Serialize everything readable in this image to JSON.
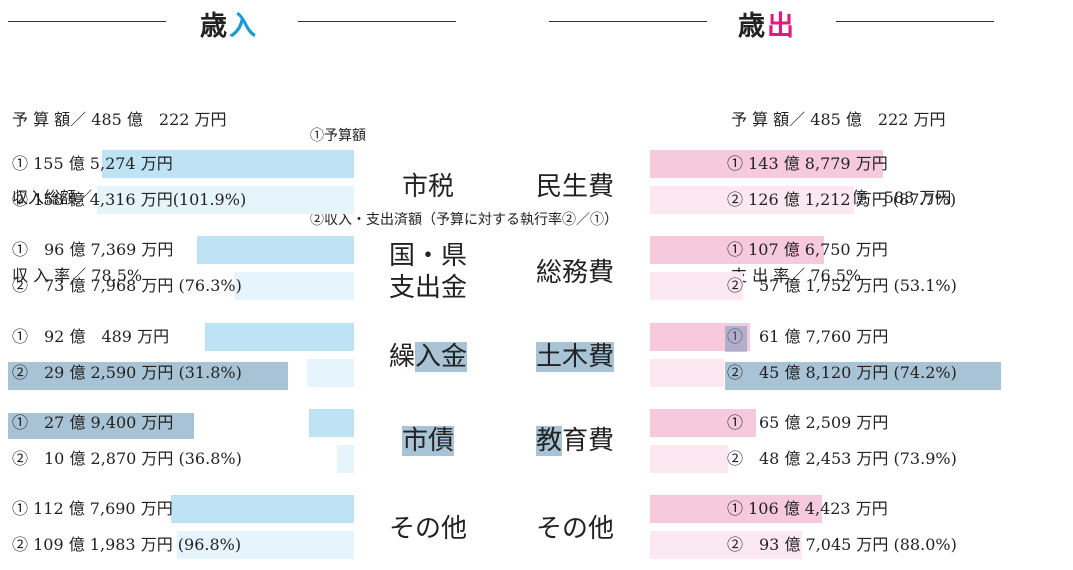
{
  "revenue": {
    "title_a": "歳",
    "title_b": "入",
    "summary": [
      "予 算 額／ 485 億　222 万円",
      "収入総額／ 380 億 9,726 万円",
      "収 入 率／ 78.5%"
    ]
  },
  "expenditure": {
    "title_a": "歳",
    "title_b": "出",
    "summary": [
      "予 算 額／ 485 億　222 万円",
      "支出済額／ 371 億　583 万円",
      "支 出 率／ 76.5%"
    ]
  },
  "legend": [
    "①予算額",
    "②収入・支出済額（予算に対する執行率②／①）"
  ],
  "colors": {
    "revenue_budget": "#bde3f5",
    "revenue_actual": "#e6f4fb",
    "expense_budget": "#f6c9dc",
    "expense_actual": "#fbe8f0",
    "accent_blue": "#1c9ad6",
    "accent_pink": "#e0197d",
    "highlight": "#5e91b2"
  },
  "chart_data": [
    {
      "type": "bar",
      "title": "歳入",
      "categories": [
        "市税",
        "国・県支出金",
        "繰入金",
        "市債",
        "その他"
      ],
      "series": [
        {
          "name": "予算額",
          "values": [
            155.5274,
            96.7369,
            92.0489,
            27.94,
            112.769
          ]
        },
        {
          "name": "収入済額",
          "values": [
            158.4316,
            73.7968,
            29.259,
            10.287,
            109.1983
          ]
        }
      ],
      "labels_budget": [
        "① 155 億 5,274 万円",
        "①　96 億 7,369 万円",
        "①　92 億　489 万円",
        "①　27 億 9,400 万円",
        "① 112 億 7,690 万円"
      ],
      "labels_actual": [
        "② 158 億 4,316 万円(101.9%)",
        "②　73 億 7,968 万円 (76.3%)",
        "②　29 億 2,590 万円 (31.8%)",
        "②　10 億 2,870 万円 (36.8%)",
        "② 109 億 1,983 万円 (96.8%)"
      ],
      "rates": [
        "101.9%",
        "76.3%",
        "31.8%",
        "36.8%",
        "96.8%"
      ]
    },
    {
      "type": "bar",
      "title": "歳出",
      "categories": [
        "民生費",
        "総務費",
        "土木費",
        "教育費",
        "その他"
      ],
      "series": [
        {
          "name": "予算額",
          "values": [
            143.8779,
            107.675,
            61.776,
            65.2509,
            106.4423
          ]
        },
        {
          "name": "支出済額",
          "values": [
            126.1212,
            57.1752,
            45.812,
            48.2453,
            93.7045
          ]
        }
      ],
      "labels_budget": [
        "① 143 億 8,779 万円",
        "① 107 億 6,750 万円",
        "①　61 億 7,760 万円",
        "①　65 億 2,509 万円",
        "① 106 億 4,423 万円"
      ],
      "labels_actual": [
        "② 126 億 1,212 万円 (87.7%)",
        "②　57 億 1,752 万円 (53.1%)",
        "②　45 億 8,120 万円 (74.2%)",
        "②　48 億 2,453 万円 (73.9%)",
        "②　93 億 7,045 万円 (88.0%)"
      ],
      "rates": [
        "87.7%",
        "53.1%",
        "74.2%",
        "73.9%",
        "88.0%"
      ]
    }
  ]
}
